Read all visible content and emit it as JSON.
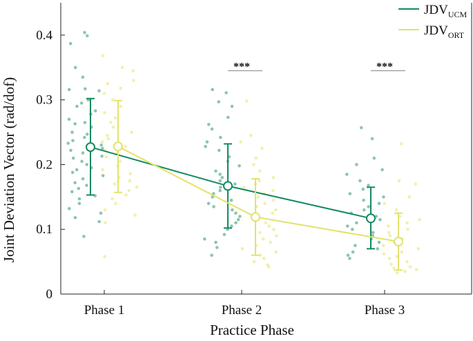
{
  "chart_data": {
    "type": "scatter",
    "title": "",
    "xlabel": "Practice Phase",
    "ylabel": "Joint Deviation Vector (rad/dof)",
    "categories": [
      "Phase 1",
      "Phase 2",
      "Phase 3"
    ],
    "ylim": [
      0,
      0.45
    ],
    "yticks": [
      0,
      0.1,
      0.2,
      0.3,
      0.4
    ],
    "ytick_labels": [
      "0",
      "0.1",
      "0.2",
      "0.3",
      "0.4"
    ],
    "legend_position": "top-right",
    "series": [
      {
        "name": "JDV",
        "subscript": "UCM",
        "color": "#138a5e",
        "point_color": "#7fbfa5",
        "means": [
          0.227,
          0.167,
          0.117
        ],
        "err_low": [
          0.153,
          0.102,
          0.07
        ],
        "err_high": [
          0.302,
          0.232,
          0.165
        ],
        "points": [
          [
            0.404,
            0.399,
            0.387,
            0.35,
            0.335,
            0.317,
            0.316,
            0.314,
            0.3,
            0.295,
            0.29,
            0.283,
            0.278,
            0.27,
            0.265,
            0.263,
            0.258,
            0.25,
            0.247,
            0.242,
            0.237,
            0.233,
            0.23,
            0.225,
            0.222,
            0.218,
            0.213,
            0.21,
            0.205,
            0.2,
            0.195,
            0.192,
            0.188,
            0.183,
            0.178,
            0.172,
            0.168,
            0.163,
            0.158,
            0.152,
            0.147,
            0.14,
            0.132,
            0.125,
            0.118,
            0.112,
            0.089
          ],
          [
            0.316,
            0.311,
            0.297,
            0.29,
            0.273,
            0.262,
            0.255,
            0.242,
            0.235,
            0.228,
            0.222,
            0.212,
            0.205,
            0.198,
            0.19,
            0.185,
            0.18,
            0.175,
            0.17,
            0.165,
            0.16,
            0.155,
            0.15,
            0.145,
            0.14,
            0.135,
            0.13,
            0.125,
            0.12,
            0.115,
            0.11,
            0.105,
            0.1,
            0.092,
            0.085,
            0.08,
            0.072,
            0.06
          ],
          [
            0.257,
            0.24,
            0.21,
            0.2,
            0.192,
            0.185,
            0.175,
            0.168,
            0.162,
            0.155,
            0.15,
            0.145,
            0.14,
            0.135,
            0.13,
            0.125,
            0.12,
            0.115,
            0.11,
            0.105,
            0.1,
            0.095,
            0.09,
            0.085,
            0.08,
            0.075,
            0.07,
            0.065,
            0.06,
            0.055
          ]
        ]
      },
      {
        "name": "JDV",
        "subscript": "ORT",
        "color": "#e2e36b",
        "point_color": "#eef0a2",
        "means": [
          0.228,
          0.119,
          0.081
        ],
        "err_low": [
          0.157,
          0.06,
          0.037
        ],
        "err_high": [
          0.299,
          0.178,
          0.125
        ],
        "points": [
          [
            0.368,
            0.35,
            0.345,
            0.33,
            0.325,
            0.318,
            0.31,
            0.3,
            0.29,
            0.28,
            0.272,
            0.265,
            0.258,
            0.25,
            0.245,
            0.24,
            0.235,
            0.228,
            0.222,
            0.218,
            0.212,
            0.205,
            0.198,
            0.192,
            0.186,
            0.18,
            0.175,
            0.17,
            0.165,
            0.16,
            0.153,
            0.147,
            0.14,
            0.13,
            0.122,
            0.11,
            0.058
          ],
          [
            0.298,
            0.245,
            0.235,
            0.225,
            0.21,
            0.2,
            0.19,
            0.18,
            0.175,
            0.17,
            0.165,
            0.16,
            0.155,
            0.15,
            0.145,
            0.14,
            0.135,
            0.13,
            0.125,
            0.12,
            0.115,
            0.11,
            0.105,
            0.1,
            0.095,
            0.09,
            0.085,
            0.08,
            0.075,
            0.07,
            0.065,
            0.06,
            0.055,
            0.05,
            0.045,
            0.042
          ],
          [
            0.232,
            0.175,
            0.17,
            0.15,
            0.14,
            0.13,
            0.12,
            0.115,
            0.11,
            0.105,
            0.1,
            0.095,
            0.09,
            0.085,
            0.08,
            0.075,
            0.07,
            0.065,
            0.062,
            0.058,
            0.055,
            0.05,
            0.046,
            0.042,
            0.04,
            0.038,
            0.035,
            0.033
          ]
        ]
      }
    ],
    "annotations": [
      {
        "category": "Phase 2",
        "text": "***",
        "y": 0.345
      },
      {
        "category": "Phase 3",
        "text": "***",
        "y": 0.345
      }
    ]
  }
}
